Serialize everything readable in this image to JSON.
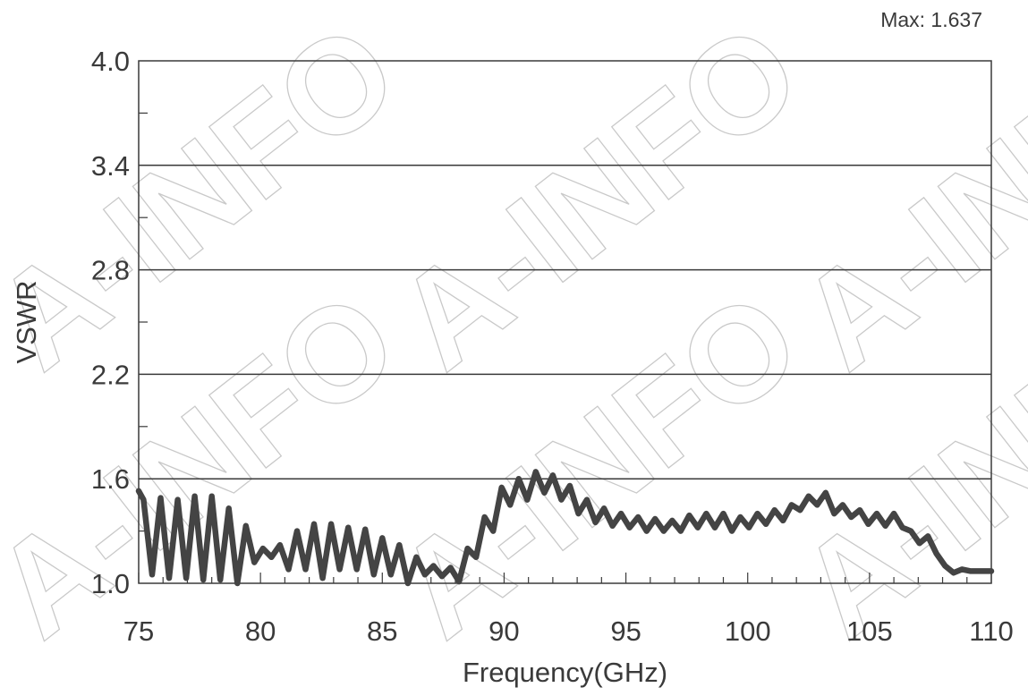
{
  "watermark": "A-INFO",
  "chart_data": {
    "type": "line",
    "title": "",
    "xlabel": "Frequency(GHz)",
    "ylabel": "VSWR",
    "xlim": [
      75,
      110
    ],
    "ylim": [
      1.0,
      4.0
    ],
    "x_ticks": [
      75,
      80,
      85,
      90,
      95,
      100,
      105,
      110
    ],
    "x_tick_labels": [
      "75",
      "80",
      "85",
      "90",
      "95",
      "100",
      "105",
      "110"
    ],
    "y_ticks": [
      1.0,
      1.6,
      2.2,
      2.8,
      3.4,
      4.0
    ],
    "y_tick_labels": [
      "1.0",
      "1.6",
      "2.2",
      "2.8",
      "3.4",
      "4.0"
    ],
    "grid": "horizontal",
    "annotation": "Max: 1.637",
    "line_color": "#444444",
    "series": [
      {
        "x": [
          75.0,
          75.2,
          75.55,
          75.9,
          76.25,
          76.6,
          76.95,
          77.3,
          77.65,
          78.0,
          78.35,
          78.7,
          79.05,
          79.4,
          79.75,
          80.1,
          80.45,
          80.8,
          81.15,
          81.5,
          81.85,
          82.2,
          82.55,
          82.9,
          83.25,
          83.6,
          83.95,
          84.3,
          84.65,
          85.0,
          85.35,
          85.7,
          86.05,
          86.4,
          86.75,
          87.1,
          87.45,
          87.8,
          88.15,
          88.5,
          88.85,
          89.2,
          89.55,
          89.9,
          90.25,
          90.6,
          90.95,
          91.3,
          91.65,
          92.0,
          92.35,
          92.7,
          93.05,
          93.4,
          93.75,
          94.1,
          94.45,
          94.8,
          95.15,
          95.5,
          95.85,
          96.2,
          96.55,
          96.9,
          97.25,
          97.6,
          97.95,
          98.3,
          98.65,
          99.0,
          99.35,
          99.7,
          100.05,
          100.4,
          100.75,
          101.1,
          101.45,
          101.8,
          102.15,
          102.5,
          102.85,
          103.2,
          103.55,
          103.9,
          104.25,
          104.6,
          104.95,
          105.3,
          105.65,
          106.0,
          106.35,
          106.7,
          107.05,
          107.4,
          107.75,
          108.1,
          108.45,
          108.8,
          109.15,
          109.5,
          109.8,
          110.0
        ],
        "y": [
          1.53,
          1.48,
          1.05,
          1.49,
          1.03,
          1.48,
          1.03,
          1.5,
          1.02,
          1.5,
          1.02,
          1.43,
          1.0,
          1.33,
          1.12,
          1.2,
          1.15,
          1.22,
          1.08,
          1.3,
          1.08,
          1.34,
          1.03,
          1.34,
          1.08,
          1.32,
          1.08,
          1.31,
          1.05,
          1.26,
          1.05,
          1.22,
          1.0,
          1.15,
          1.05,
          1.1,
          1.04,
          1.09,
          1.01,
          1.2,
          1.15,
          1.38,
          1.3,
          1.55,
          1.45,
          1.6,
          1.48,
          1.64,
          1.52,
          1.62,
          1.48,
          1.56,
          1.4,
          1.48,
          1.35,
          1.43,
          1.33,
          1.4,
          1.32,
          1.38,
          1.3,
          1.37,
          1.3,
          1.36,
          1.3,
          1.39,
          1.32,
          1.4,
          1.32,
          1.4,
          1.3,
          1.38,
          1.32,
          1.4,
          1.34,
          1.42,
          1.36,
          1.45,
          1.42,
          1.5,
          1.45,
          1.52,
          1.4,
          1.45,
          1.38,
          1.42,
          1.34,
          1.4,
          1.33,
          1.4,
          1.32,
          1.3,
          1.23,
          1.27,
          1.17,
          1.1,
          1.06,
          1.08,
          1.07,
          1.07,
          1.07,
          1.07
        ]
      }
    ]
  }
}
